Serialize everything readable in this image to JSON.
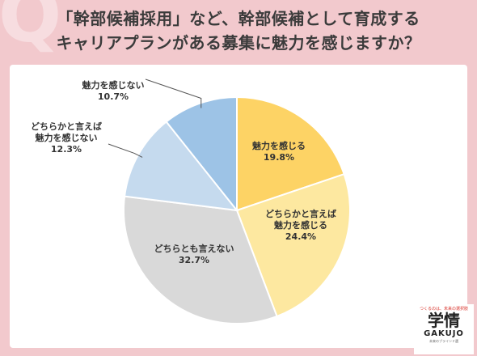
{
  "title": {
    "line1": "「幹部候補採用」など、幹部候補として育成する",
    "line2": "キャリアプランがある募集に魅力を感じますか？"
  },
  "decoration": {
    "q_mark": "Q"
  },
  "chart_data": {
    "type": "pie",
    "start": "12 o'clock, clockwise",
    "slices": [
      {
        "label": [
          "魅力を感じる"
        ],
        "value": 19.8,
        "value_text": "19.8%",
        "color": "#fdd365",
        "label_position": "inside"
      },
      {
        "label": [
          "どちらかと言えば",
          "魅力を感じる"
        ],
        "value": 24.4,
        "value_text": "24.4%",
        "color": "#fde8a0",
        "label_position": "inside"
      },
      {
        "label": [
          "どちらとも言えない"
        ],
        "value": 32.7,
        "value_text": "32.7%",
        "color": "#d9d9d9",
        "label_position": "inside"
      },
      {
        "label": [
          "どちらかと言えば",
          "魅力を感じない"
        ],
        "value": 12.3,
        "value_text": "12.3%",
        "color": "#c5daee",
        "label_position": "outside-left"
      },
      {
        "label": [
          "魅力を感じない"
        ],
        "value": 10.7,
        "value_text": "10.7%",
        "color": "#9dc3e6",
        "label_position": "outside-top-left"
      }
    ]
  },
  "logo": {
    "tagline": "つくるのは、未来の選択肢",
    "kanji": "学情",
    "latin": "GAKUJO",
    "sub": "未来のブラインド選"
  }
}
